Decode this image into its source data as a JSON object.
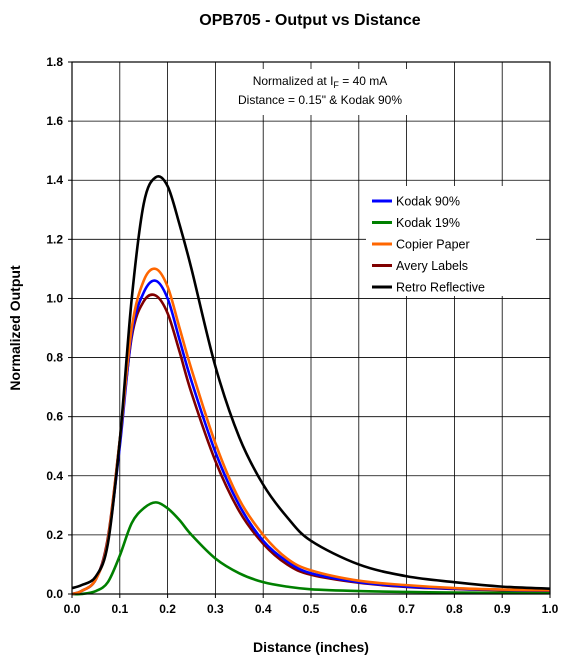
{
  "chart_data": {
    "type": "line",
    "title": "OPB705 - Output vs Distance",
    "xlabel": "Distance (inches)",
    "ylabel": "Normalized Output",
    "xlim": [
      0,
      1.0
    ],
    "ylim": [
      0,
      1.8
    ],
    "x_ticks": [
      "0.0",
      "0.1",
      "0.2",
      "0.3",
      "0.4",
      "0.5",
      "0.6",
      "0.7",
      "0.8",
      "0.9",
      "1.0"
    ],
    "y_ticks": [
      "0.0",
      "0.2",
      "0.4",
      "0.6",
      "0.8",
      "1.0",
      "1.2",
      "1.4",
      "1.6",
      "1.8"
    ],
    "grid": true,
    "legend_position": "right",
    "annotation": {
      "line1_prefix": "Normalized at I",
      "line1_sub": "F",
      "line1_suffix": " = 40 mA",
      "line2": "Distance = 0.15\" & Kodak 90%"
    },
    "series": [
      {
        "name": "Kodak 90%",
        "color": "#0000ff",
        "x": [
          0.0,
          0.02,
          0.05,
          0.075,
          0.1,
          0.125,
          0.15,
          0.175,
          0.2,
          0.225,
          0.25,
          0.3,
          0.35,
          0.4,
          0.45,
          0.5,
          0.6,
          0.7,
          0.8,
          0.9,
          1.0
        ],
        "y": [
          0.0,
          0.01,
          0.05,
          0.18,
          0.5,
          0.88,
          1.02,
          1.06,
          1.0,
          0.86,
          0.72,
          0.48,
          0.3,
          0.18,
          0.11,
          0.07,
          0.04,
          0.025,
          0.018,
          0.014,
          0.012
        ]
      },
      {
        "name": "Kodak 19%",
        "color": "#008000",
        "x": [
          0.0,
          0.02,
          0.05,
          0.075,
          0.1,
          0.125,
          0.15,
          0.175,
          0.2,
          0.225,
          0.25,
          0.3,
          0.35,
          0.4,
          0.45,
          0.5,
          0.6,
          0.7,
          0.8,
          0.9,
          1.0
        ],
        "y": [
          0.0,
          0.0,
          0.01,
          0.04,
          0.13,
          0.24,
          0.29,
          0.31,
          0.29,
          0.25,
          0.2,
          0.12,
          0.07,
          0.04,
          0.025,
          0.016,
          0.01,
          0.007,
          0.005,
          0.004,
          0.003
        ]
      },
      {
        "name": "Copier Paper",
        "color": "#ff6600",
        "x": [
          0.0,
          0.02,
          0.05,
          0.075,
          0.1,
          0.125,
          0.15,
          0.175,
          0.2,
          0.225,
          0.25,
          0.3,
          0.35,
          0.4,
          0.45,
          0.5,
          0.6,
          0.7,
          0.8,
          0.9,
          1.0
        ],
        "y": [
          0.0,
          0.01,
          0.05,
          0.18,
          0.52,
          0.9,
          1.06,
          1.1,
          1.04,
          0.9,
          0.76,
          0.51,
          0.32,
          0.2,
          0.12,
          0.08,
          0.045,
          0.03,
          0.02,
          0.015,
          0.013
        ]
      },
      {
        "name": "Avery Labels",
        "color": "#800000",
        "x": [
          0.0,
          0.02,
          0.05,
          0.075,
          0.1,
          0.125,
          0.15,
          0.175,
          0.2,
          0.225,
          0.25,
          0.3,
          0.35,
          0.4,
          0.45,
          0.5,
          0.6,
          0.7,
          0.8,
          0.9,
          1.0
        ],
        "y": [
          0.0,
          0.01,
          0.05,
          0.19,
          0.52,
          0.87,
          0.99,
          1.01,
          0.95,
          0.82,
          0.68,
          0.45,
          0.28,
          0.17,
          0.1,
          0.065,
          0.038,
          0.024,
          0.017,
          0.013,
          0.011
        ]
      },
      {
        "name": "Retro Reflective",
        "color": "#000000",
        "x": [
          0.0,
          0.02,
          0.05,
          0.075,
          0.1,
          0.125,
          0.15,
          0.175,
          0.2,
          0.225,
          0.25,
          0.3,
          0.35,
          0.4,
          0.45,
          0.5,
          0.6,
          0.7,
          0.8,
          0.9,
          1.0
        ],
        "y": [
          0.02,
          0.03,
          0.06,
          0.17,
          0.52,
          1.0,
          1.32,
          1.41,
          1.38,
          1.25,
          1.1,
          0.77,
          0.53,
          0.37,
          0.26,
          0.18,
          0.1,
          0.06,
          0.04,
          0.025,
          0.018
        ]
      }
    ]
  }
}
